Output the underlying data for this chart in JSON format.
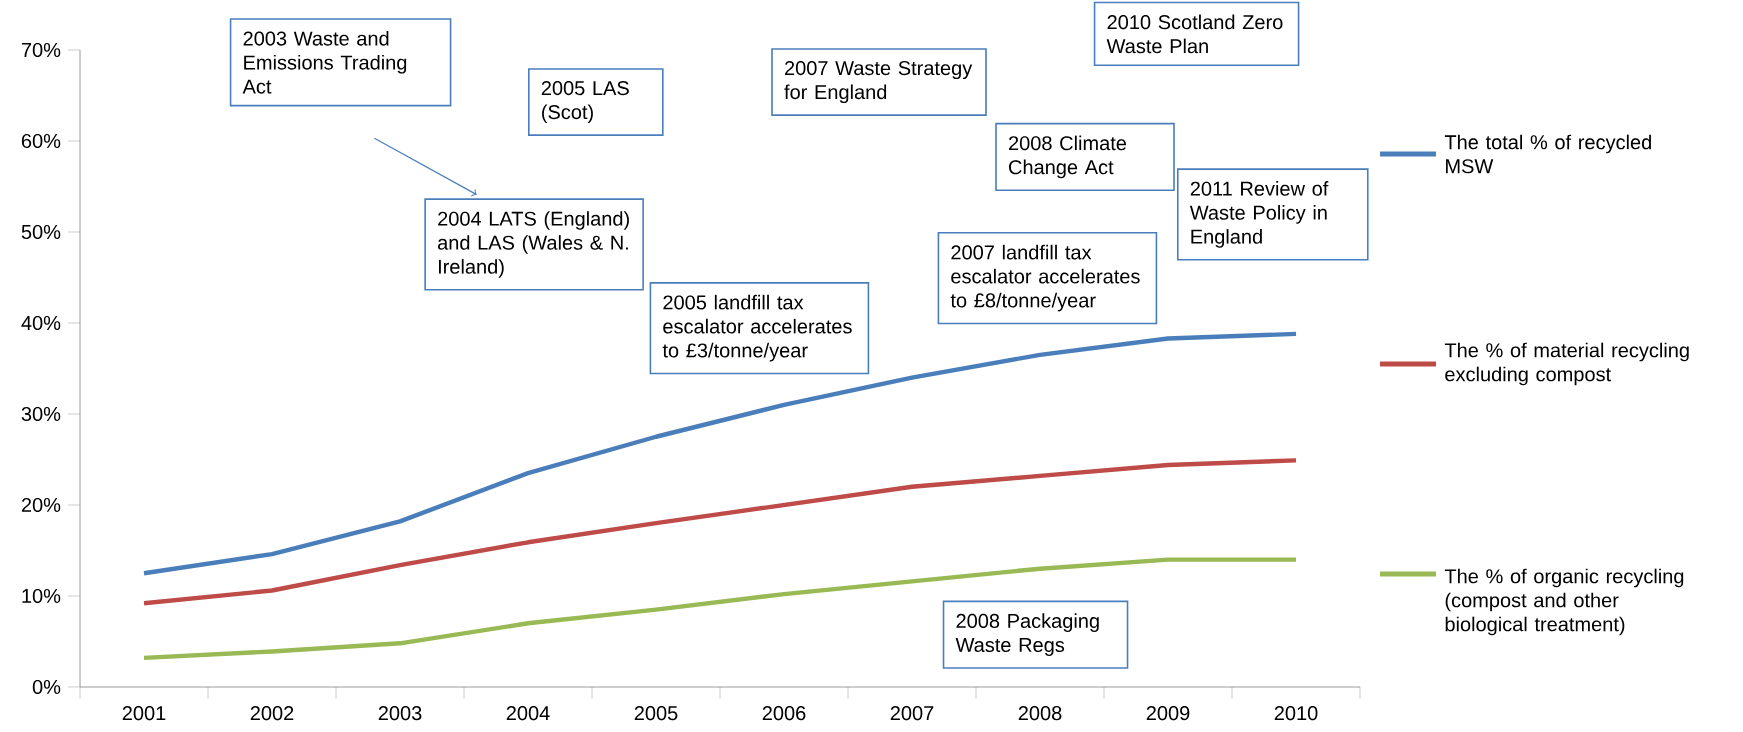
{
  "chart_data": {
    "type": "line",
    "categories": [
      "2001",
      "2002",
      "2003",
      "2004",
      "2005",
      "2006",
      "2007",
      "2008",
      "2009",
      "2010"
    ],
    "series": [
      {
        "name": "The total % of recycled MSW",
        "color": "#4a7ebb",
        "values": [
          12.5,
          14.6,
          18.2,
          23.5,
          27.5,
          31,
          34,
          36.5,
          38.3,
          38.8
        ]
      },
      {
        "name": "The % of material recycling excluding compost",
        "color": "#be4b48",
        "values": [
          9.2,
          10.6,
          13.4,
          15.9,
          18,
          20,
          22,
          23.2,
          24.4,
          24.9
        ]
      },
      {
        "name": "The % of organic recycling (compost and other biological treatment)",
        "color": "#98b954",
        "values": [
          3.2,
          3.9,
          4.8,
          7,
          8.5,
          10.2,
          11.6,
          13,
          14,
          14
        ]
      }
    ],
    "ylim": [
      0,
      70
    ],
    "yticks": [
      {
        "value": 0,
        "label": "0%"
      },
      {
        "value": 10,
        "label": "10%"
      },
      {
        "value": 20,
        "label": "20%"
      },
      {
        "value": 30,
        "label": "30%"
      },
      {
        "value": 40,
        "label": "40%"
      },
      {
        "value": 50,
        "label": "50%"
      },
      {
        "value": 60,
        "label": "60%"
      },
      {
        "value": 70,
        "label": "70%"
      }
    ],
    "legend": "right",
    "annotations": [
      "2003 Waste and Emissions Trading Act",
      "2004 LATS (England) and LAS (Wales & N. Ireland)",
      "2005 LAS (Scot)",
      "2005 landfill tax escalator accelerates to £3/tonne/year",
      "2007 Waste Strategy for England",
      "2007 landfill tax escalator accelerates to £8/tonne/year",
      "2008 Climate Change Act",
      "2008 Packaging Waste Regs",
      "2010 Scotland Zero Waste Plan",
      "2011 Review of Waste Policy in England"
    ]
  }
}
